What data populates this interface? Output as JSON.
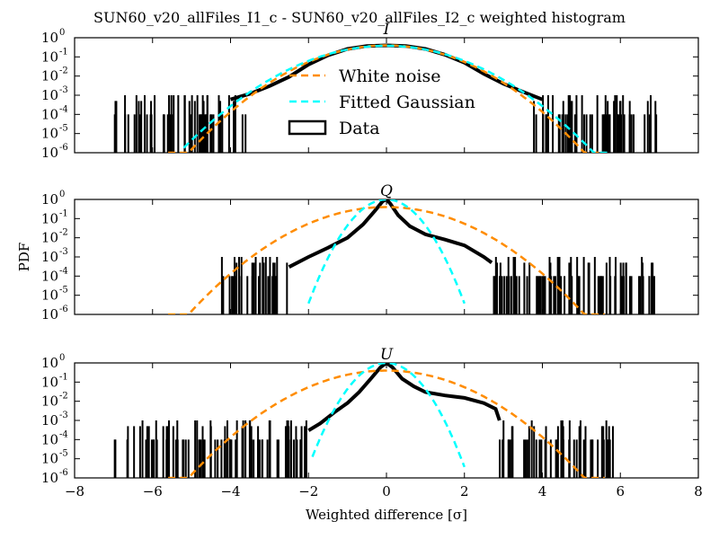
{
  "chart_data": {
    "type": "line",
    "suptitle": "SUN60_v20_allFiles_I1_c - SUN60_v20_allFiles_I2_c weighted histogram",
    "xlabel": "Weighted difference [σ]",
    "ylabel": "PDF",
    "xlim": [
      -8,
      8
    ],
    "ylim": [
      1e-06,
      1
    ],
    "yscale": "log",
    "xticks": [
      "−8",
      "−6",
      "−4",
      "−2",
      "0",
      "2",
      "4",
      "6",
      "8"
    ],
    "yticks": [
      {
        "base": "10",
        "exp": "0"
      },
      {
        "base": "10",
        "exp": "-1"
      },
      {
        "base": "10",
        "exp": "-2"
      },
      {
        "base": "10",
        "exp": "-3"
      },
      {
        "base": "10",
        "exp": "-4"
      },
      {
        "base": "10",
        "exp": "-5"
      },
      {
        "base": "10",
        "exp": "-6"
      }
    ],
    "colors": {
      "white_noise": "#ff8c00",
      "fitted_gaussian": "#00ffff",
      "data": "#000000"
    },
    "legend": {
      "location": "upper-center, top panel",
      "entries": [
        {
          "label": "White noise",
          "style": "dashed",
          "color": "#ff8c00"
        },
        {
          "label": "Fitted Gaussian",
          "style": "dashed",
          "color": "#00ffff"
        },
        {
          "label": "Data",
          "style": "box",
          "color": "#000000"
        }
      ]
    },
    "panels": [
      {
        "title": "I",
        "white_noise": {
          "mu": 0.0,
          "sigma": 1.0
        },
        "fitted_gaussian": {
          "mu": 0.0,
          "sigma": 1.05,
          "x_range": [
            -5.2,
            5.7
          ]
        },
        "data_curve": [
          [
            -4.0,
            0.0006
          ],
          [
            -3.5,
            0.0012
          ],
          [
            -3.0,
            0.003
          ],
          [
            -2.5,
            0.009
          ],
          [
            -2.0,
            0.04
          ],
          [
            -1.5,
            0.12
          ],
          [
            -1.0,
            0.26
          ],
          [
            -0.5,
            0.37
          ],
          [
            0.0,
            0.4
          ],
          [
            0.5,
            0.37
          ],
          [
            1.0,
            0.26
          ],
          [
            1.5,
            0.13
          ],
          [
            2.0,
            0.05
          ],
          [
            2.5,
            0.013
          ],
          [
            3.0,
            0.004
          ],
          [
            3.5,
            0.0015
          ],
          [
            4.0,
            0.0006
          ]
        ],
        "data_noise_range": [
          [
            -7.0,
            -3.6
          ],
          [
            3.7,
            7.0
          ]
        ]
      },
      {
        "title": "Q",
        "white_noise": {
          "mu": 0.0,
          "sigma": 1.0
        },
        "fitted_gaussian": {
          "mu": 0.0,
          "sigma": 0.4,
          "x_range": [
            -2.0,
            2.0
          ]
        },
        "data_curve": [
          [
            -2.5,
            0.0003
          ],
          [
            -2.0,
            0.001
          ],
          [
            -1.5,
            0.003
          ],
          [
            -1.0,
            0.01
          ],
          [
            -0.6,
            0.05
          ],
          [
            -0.3,
            0.25
          ],
          [
            -0.1,
            0.8
          ],
          [
            0.0,
            1.0
          ],
          [
            0.1,
            0.6
          ],
          [
            0.3,
            0.15
          ],
          [
            0.6,
            0.04
          ],
          [
            1.0,
            0.015
          ],
          [
            1.5,
            0.008
          ],
          [
            2.0,
            0.004
          ],
          [
            2.5,
            0.001
          ],
          [
            2.7,
            0.0005
          ]
        ],
        "data_noise_range": [
          [
            -4.3,
            -2.5
          ],
          [
            2.7,
            6.9
          ]
        ]
      },
      {
        "title": "U",
        "white_noise": {
          "mu": 0.0,
          "sigma": 1.0
        },
        "fitted_gaussian": {
          "mu": 0.0,
          "sigma": 0.4,
          "x_range": [
            -1.9,
            2.0
          ]
        },
        "data_curve": [
          [
            -2.0,
            0.0003
          ],
          [
            -1.7,
            0.0007
          ],
          [
            -1.3,
            0.003
          ],
          [
            -1.0,
            0.008
          ],
          [
            -0.7,
            0.03
          ],
          [
            -0.4,
            0.15
          ],
          [
            -0.15,
            0.6
          ],
          [
            0.0,
            1.0
          ],
          [
            0.15,
            0.6
          ],
          [
            0.4,
            0.15
          ],
          [
            0.7,
            0.06
          ],
          [
            1.0,
            0.03
          ],
          [
            1.5,
            0.02
          ],
          [
            2.0,
            0.015
          ],
          [
            2.5,
            0.008
          ],
          [
            2.8,
            0.004
          ],
          [
            2.9,
            0.001
          ]
        ],
        "data_noise_range": [
          [
            -7.0,
            -2.0
          ],
          [
            2.9,
            5.9
          ]
        ]
      }
    ]
  }
}
